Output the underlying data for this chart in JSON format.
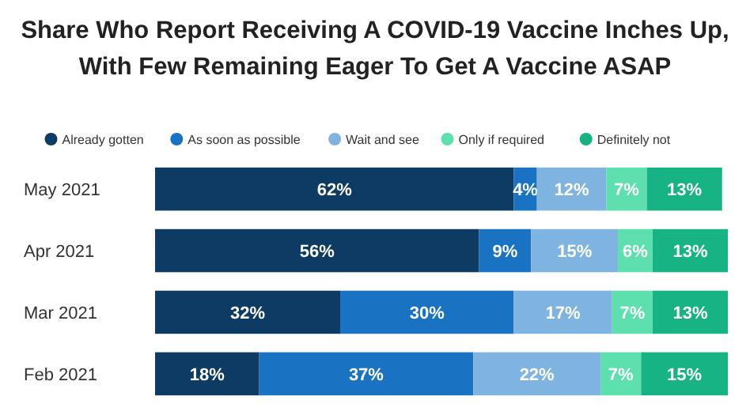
{
  "chart_data": {
    "type": "bar",
    "orientation": "horizontal",
    "stacked": true,
    "title": "Share Who Report Receiving A COVID-19 Vaccine Inches Up, With Few Remaining Eager To Get A Vaccine ASAP",
    "categories": [
      "May 2021",
      "Apr 2021",
      "Mar 2021",
      "Feb 2021"
    ],
    "series": [
      {
        "name": "Already gotten",
        "color": "#0d3b63",
        "values": [
          62,
          56,
          32,
          18
        ],
        "value_labels": [
          "62%",
          "56%",
          "32%",
          "18%"
        ]
      },
      {
        "name": "As soon as possible",
        "color": "#1a72c2",
        "values": [
          4,
          9,
          30,
          37
        ],
        "value_labels": [
          "4%",
          "9%",
          "30%",
          "37%"
        ]
      },
      {
        "name": "Wait and see",
        "color": "#7fb3e0",
        "values": [
          12,
          15,
          17,
          22
        ],
        "value_labels": [
          "12%",
          "15%",
          "17%",
          "22%"
        ]
      },
      {
        "name": "Only if required",
        "color": "#5de0ae",
        "values": [
          7,
          6,
          7,
          7
        ],
        "value_labels": [
          "7%",
          "6%",
          "7%",
          "7%"
        ]
      },
      {
        "name": "Definitely not",
        "color": "#17b384",
        "values": [
          13,
          13,
          13,
          15
        ],
        "value_labels": [
          "13%",
          "13%",
          "13%",
          "15%"
        ]
      }
    ],
    "legend": "top",
    "tick_labels": "y"
  }
}
